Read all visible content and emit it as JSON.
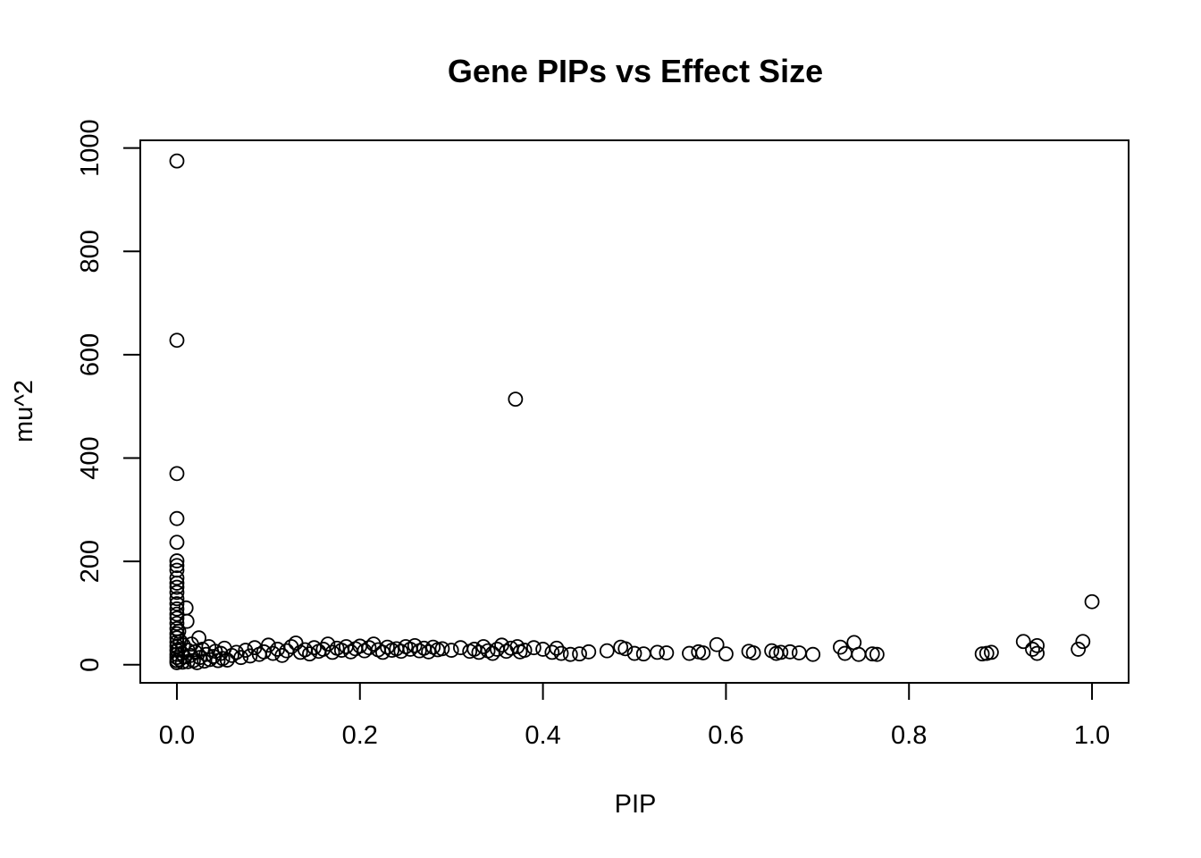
{
  "chart_data": {
    "type": "scatter",
    "title": "Gene PIPs vs Effect Size",
    "xlabel": "PIP",
    "ylabel": "mu^2",
    "xlim": [
      -0.04,
      1.04
    ],
    "ylim": [
      -35,
      1015
    ],
    "xticks": [
      0.0,
      0.2,
      0.4,
      0.6,
      0.8,
      1.0
    ],
    "xtick_labels": [
      "0.0",
      "0.2",
      "0.4",
      "0.6",
      "0.8",
      "1.0"
    ],
    "yticks": [
      0,
      200,
      400,
      600,
      800,
      1000
    ],
    "ytick_labels": [
      "0",
      "200",
      "400",
      "600",
      "800",
      "1000"
    ],
    "grid": false,
    "legend": "none",
    "marker": "open-circle",
    "points": [
      [
        0.0,
        975
      ],
      [
        0.0,
        628
      ],
      [
        0.0,
        370
      ],
      [
        0.0,
        283
      ],
      [
        0.0,
        237
      ],
      [
        0.0,
        201
      ],
      [
        0.0,
        192
      ],
      [
        0.0,
        183
      ],
      [
        0.0,
        168
      ],
      [
        0.0,
        158
      ],
      [
        0.0,
        150
      ],
      [
        0.0,
        140
      ],
      [
        0.0,
        128
      ],
      [
        0.0,
        118
      ],
      [
        0.0,
        108
      ],
      [
        0.0,
        98
      ],
      [
        0.0,
        90
      ],
      [
        0.0,
        80
      ],
      [
        0.0,
        70
      ],
      [
        0.0,
        60
      ],
      [
        0.0,
        52
      ],
      [
        0.0,
        44
      ],
      [
        0.0,
        36
      ],
      [
        0.0,
        28
      ],
      [
        0.0,
        20
      ],
      [
        0.0,
        14
      ],
      [
        0.0,
        8
      ],
      [
        0.0,
        4
      ],
      [
        0.002,
        65
      ],
      [
        0.002,
        30
      ],
      [
        0.003,
        10
      ],
      [
        0.004,
        45
      ],
      [
        0.005,
        22
      ],
      [
        0.006,
        5
      ],
      [
        0.007,
        38
      ],
      [
        0.008,
        15
      ],
      [
        0.01,
        110
      ],
      [
        0.011,
        84
      ],
      [
        0.012,
        28
      ],
      [
        0.012,
        6
      ],
      [
        0.015,
        18
      ],
      [
        0.016,
        40
      ],
      [
        0.018,
        8
      ],
      [
        0.02,
        25
      ],
      [
        0.022,
        4
      ],
      [
        0.024,
        52
      ],
      [
        0.025,
        14
      ],
      [
        0.028,
        30
      ],
      [
        0.03,
        7
      ],
      [
        0.032,
        20
      ],
      [
        0.035,
        35
      ],
      [
        0.036,
        10
      ],
      [
        0.04,
        16
      ],
      [
        0.042,
        26
      ],
      [
        0.045,
        8
      ],
      [
        0.048,
        22
      ],
      [
        0.05,
        12
      ],
      [
        0.052,
        32
      ],
      [
        0.055,
        9
      ],
      [
        0.06,
        18
      ],
      [
        0.065,
        24
      ],
      [
        0.07,
        14
      ],
      [
        0.075,
        28
      ],
      [
        0.08,
        17
      ],
      [
        0.085,
        33
      ],
      [
        0.09,
        20
      ],
      [
        0.095,
        25
      ],
      [
        0.1,
        38
      ],
      [
        0.105,
        22
      ],
      [
        0.11,
        30
      ],
      [
        0.115,
        18
      ],
      [
        0.12,
        27
      ],
      [
        0.125,
        35
      ],
      [
        0.13,
        42
      ],
      [
        0.135,
        24
      ],
      [
        0.14,
        29
      ],
      [
        0.145,
        21
      ],
      [
        0.15,
        33
      ],
      [
        0.155,
        26
      ],
      [
        0.16,
        30
      ],
      [
        0.165,
        40
      ],
      [
        0.17,
        24
      ],
      [
        0.175,
        32
      ],
      [
        0.18,
        28
      ],
      [
        0.185,
        35
      ],
      [
        0.19,
        25
      ],
      [
        0.195,
        31
      ],
      [
        0.2,
        36
      ],
      [
        0.205,
        27
      ],
      [
        0.21,
        33
      ],
      [
        0.215,
        40
      ],
      [
        0.22,
        29
      ],
      [
        0.225,
        24
      ],
      [
        0.23,
        34
      ],
      [
        0.235,
        28
      ],
      [
        0.24,
        31
      ],
      [
        0.245,
        26
      ],
      [
        0.25,
        35
      ],
      [
        0.255,
        30
      ],
      [
        0.26,
        37
      ],
      [
        0.265,
        27
      ],
      [
        0.27,
        32
      ],
      [
        0.275,
        25
      ],
      [
        0.28,
        34
      ],
      [
        0.285,
        29
      ],
      [
        0.29,
        31
      ],
      [
        0.3,
        28
      ],
      [
        0.31,
        33
      ],
      [
        0.32,
        26
      ],
      [
        0.325,
        30
      ],
      [
        0.33,
        24
      ],
      [
        0.335,
        35
      ],
      [
        0.34,
        27
      ],
      [
        0.345,
        22
      ],
      [
        0.35,
        30
      ],
      [
        0.355,
        38
      ],
      [
        0.36,
        26
      ],
      [
        0.365,
        32
      ],
      [
        0.37,
        514
      ],
      [
        0.372,
        35
      ],
      [
        0.375,
        25
      ],
      [
        0.38,
        28
      ],
      [
        0.39,
        33
      ],
      [
        0.4,
        30
      ],
      [
        0.41,
        24
      ],
      [
        0.415,
        32
      ],
      [
        0.42,
        22
      ],
      [
        0.43,
        20
      ],
      [
        0.44,
        21
      ],
      [
        0.45,
        25
      ],
      [
        0.47,
        27
      ],
      [
        0.485,
        34
      ],
      [
        0.49,
        31
      ],
      [
        0.5,
        22
      ],
      [
        0.51,
        21
      ],
      [
        0.525,
        24
      ],
      [
        0.535,
        23
      ],
      [
        0.56,
        22
      ],
      [
        0.57,
        25
      ],
      [
        0.575,
        23
      ],
      [
        0.59,
        39
      ],
      [
        0.6,
        21
      ],
      [
        0.625,
        26
      ],
      [
        0.63,
        23
      ],
      [
        0.65,
        27
      ],
      [
        0.655,
        22
      ],
      [
        0.66,
        24
      ],
      [
        0.67,
        25
      ],
      [
        0.68,
        23
      ],
      [
        0.695,
        20
      ],
      [
        0.725,
        34
      ],
      [
        0.73,
        22
      ],
      [
        0.74,
        43
      ],
      [
        0.745,
        20
      ],
      [
        0.76,
        21
      ],
      [
        0.765,
        20
      ],
      [
        0.88,
        21
      ],
      [
        0.885,
        22
      ],
      [
        0.89,
        24
      ],
      [
        0.925,
        45
      ],
      [
        0.935,
        30
      ],
      [
        0.94,
        37
      ],
      [
        0.94,
        22
      ],
      [
        0.985,
        30
      ],
      [
        0.99,
        45
      ],
      [
        1.0,
        122
      ]
    ]
  }
}
